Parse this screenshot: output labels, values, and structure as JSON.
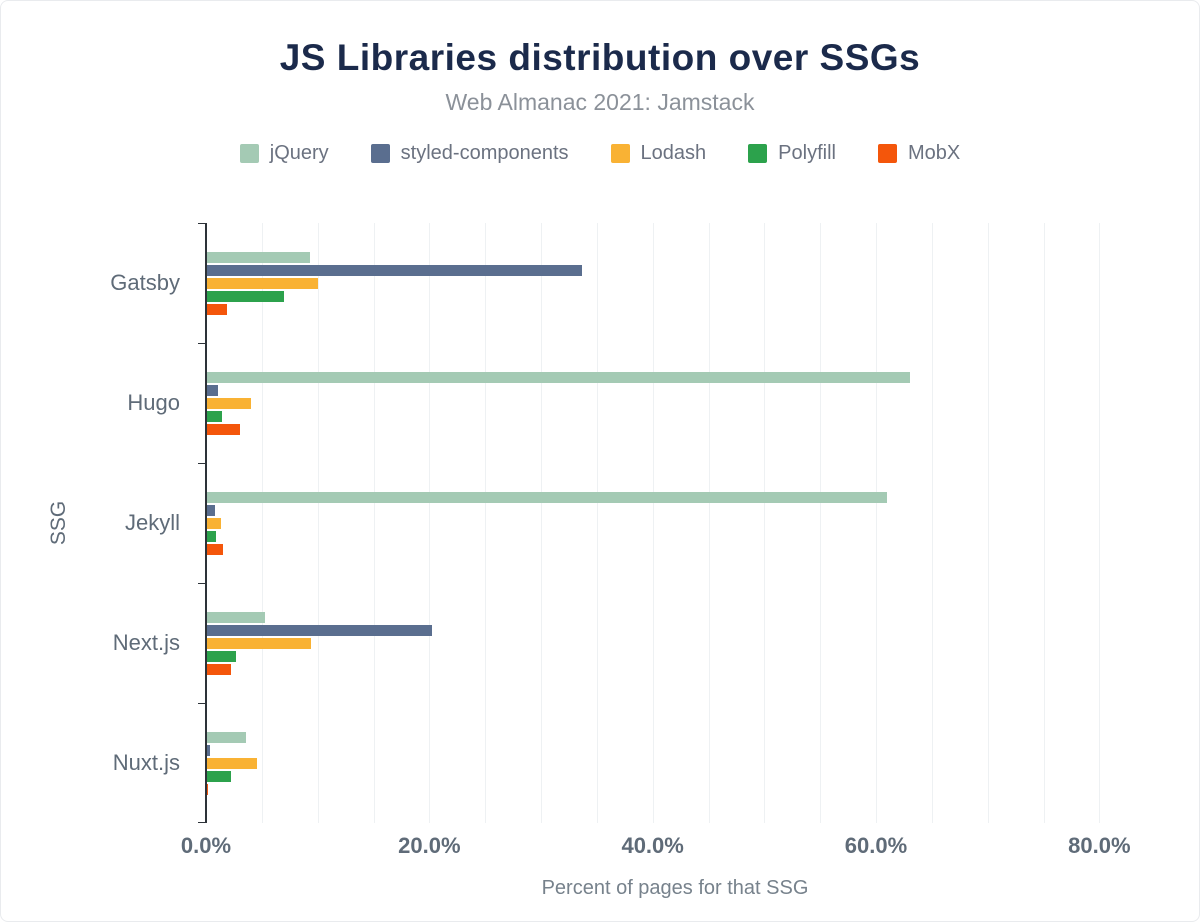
{
  "title": "JS Libraries distribution over SSGs",
  "subtitle": "Web Almanac 2021: Jamstack",
  "colors": {
    "title": "#1b2a4b",
    "subtitle": "#8b9199",
    "axis_text": "#5f6b78",
    "axis_title_text": "#77828c",
    "grid": "#eef1f3",
    "axis_line": "#2d3339"
  },
  "chart_data": {
    "type": "bar",
    "orientation": "horizontal",
    "title": "JS Libraries distribution over SSGs",
    "subtitle": "Web Almanac 2021: Jamstack",
    "xlabel": "Percent of pages for that SSG",
    "ylabel": "SSG",
    "categories": [
      "Gatsby",
      "Hugo",
      "Jekyll",
      "Next.js",
      "Nuxt.js"
    ],
    "series": [
      {
        "name": "jQuery",
        "color": "#a4cab4",
        "values": [
          9.3,
          63.0,
          61.0,
          5.3,
          3.6
        ]
      },
      {
        "name": "styled-components",
        "color": "#5a6e8f",
        "values": [
          33.7,
          1.1,
          0.8,
          20.2,
          0.4
        ]
      },
      {
        "name": "Lodash",
        "color": "#f9b234",
        "values": [
          10.0,
          4.0,
          1.3,
          9.4,
          4.6
        ]
      },
      {
        "name": "Polyfill",
        "color": "#2ca24c",
        "values": [
          7.0,
          1.4,
          0.9,
          2.7,
          2.2
        ]
      },
      {
        "name": "MobX",
        "color": "#f4560b",
        "values": [
          1.9,
          3.0,
          1.5,
          2.2,
          0.2
        ]
      }
    ],
    "xlim": [
      0,
      84
    ],
    "x_tick_values": [
      0,
      20,
      40,
      60,
      80
    ],
    "x_tick_labels": [
      "0.0%",
      "20.0%",
      "40.0%",
      "60.0%",
      "80.0%"
    ],
    "grid_step": 5,
    "grid": true,
    "legend_position": "top"
  }
}
